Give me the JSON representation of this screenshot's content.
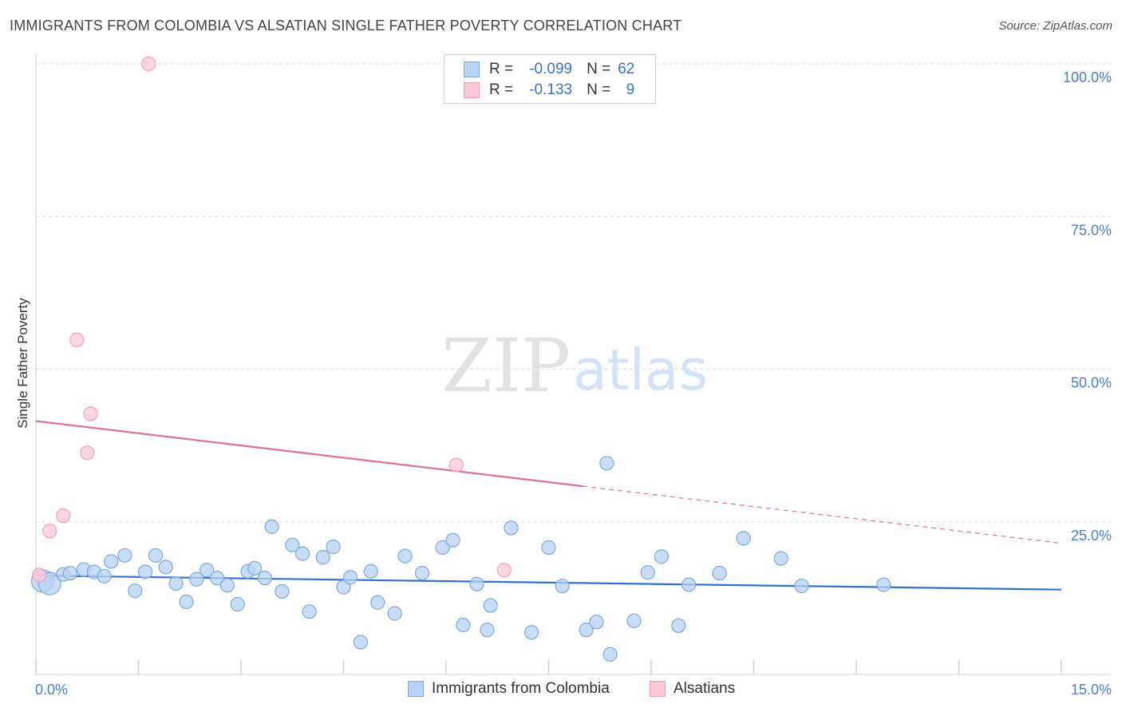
{
  "title": "IMMIGRANTS FROM COLOMBIA VS ALSATIAN SINGLE FATHER POVERTY CORRELATION CHART",
  "source": "Source: ZipAtlas.com",
  "watermark": {
    "zip": "ZIP",
    "atlas": "atlas"
  },
  "legend": {
    "r_label": "R =",
    "n_label": "N =",
    "rows": [
      {
        "r": "-0.099",
        "n": "62",
        "fill": "#b8d2f4",
        "stroke": "#7fa8e0"
      },
      {
        "r": "-0.133",
        "n": "9",
        "fill": "#fcc8d6",
        "stroke": "#f0a0b8"
      }
    ]
  },
  "bottom_legend": [
    {
      "label": "Immigrants from Colombia",
      "fill": "#b8d2f4",
      "stroke": "#7fa8e0"
    },
    {
      "label": "Alsatians",
      "fill": "#fcc8d6",
      "stroke": "#f0a0b8"
    }
  ],
  "chart_data": {
    "type": "scatter",
    "title": "IMMIGRANTS FROM COLOMBIA VS ALSATIAN SINGLE FATHER POVERTY CORRELATION CHART",
    "xlabel": "",
    "ylabel": "Single Father Poverty",
    "xlim": [
      0,
      15
    ],
    "ylim": [
      0,
      100
    ],
    "x_tick_labels": [
      "0.0%",
      "15.0%"
    ],
    "y_ticks": [
      25,
      50,
      75,
      100
    ],
    "y_tick_labels": [
      "25.0%",
      "50.0%",
      "75.0%",
      "100.0%"
    ],
    "grid": true,
    "series": [
      {
        "name": "Immigrants from Colombia",
        "color": "#7fa8e0",
        "fill": "#b8d2f4",
        "trend_color": "#2f72d0",
        "trend": {
          "x": [
            0,
            15
          ],
          "y": [
            16.2,
            13.9
          ]
        },
        "points": [
          [
            0.1,
            15.3
          ],
          [
            0.2,
            14.9
          ],
          [
            0.4,
            16.4
          ],
          [
            0.5,
            16.6
          ],
          [
            0.7,
            17.2
          ],
          [
            0.85,
            16.8
          ],
          [
            1.0,
            16.1
          ],
          [
            1.1,
            18.5
          ],
          [
            1.3,
            19.5
          ],
          [
            1.45,
            13.7
          ],
          [
            1.6,
            16.8
          ],
          [
            1.75,
            19.5
          ],
          [
            1.9,
            17.6
          ],
          [
            2.05,
            14.9
          ],
          [
            2.2,
            11.9
          ],
          [
            2.35,
            15.6
          ],
          [
            2.5,
            17.1
          ],
          [
            2.65,
            15.8
          ],
          [
            2.8,
            14.6
          ],
          [
            2.95,
            11.5
          ],
          [
            3.1,
            16.9
          ],
          [
            3.2,
            17.4
          ],
          [
            3.35,
            15.8
          ],
          [
            3.45,
            24.2
          ],
          [
            3.6,
            13.6
          ],
          [
            3.75,
            21.2
          ],
          [
            3.9,
            19.8
          ],
          [
            4.0,
            10.3
          ],
          [
            4.2,
            19.2
          ],
          [
            4.35,
            20.9
          ],
          [
            4.5,
            14.3
          ],
          [
            4.6,
            15.9
          ],
          [
            4.75,
            5.3
          ],
          [
            4.9,
            16.9
          ],
          [
            5.0,
            11.8
          ],
          [
            5.25,
            10.0
          ],
          [
            5.4,
            19.4
          ],
          [
            5.65,
            16.6
          ],
          [
            5.95,
            20.8
          ],
          [
            6.1,
            22.0
          ],
          [
            6.25,
            8.1
          ],
          [
            6.45,
            14.8
          ],
          [
            6.6,
            7.3
          ],
          [
            6.65,
            11.3
          ],
          [
            6.95,
            24.0
          ],
          [
            7.25,
            6.9
          ],
          [
            7.5,
            20.8
          ],
          [
            7.7,
            14.5
          ],
          [
            8.05,
            7.3
          ],
          [
            8.2,
            8.6
          ],
          [
            8.35,
            34.6
          ],
          [
            8.4,
            3.3
          ],
          [
            8.75,
            8.8
          ],
          [
            8.95,
            16.7
          ],
          [
            9.15,
            19.3
          ],
          [
            9.4,
            8.0
          ],
          [
            9.55,
            14.7
          ],
          [
            10.0,
            16.6
          ],
          [
            10.35,
            22.3
          ],
          [
            10.9,
            19.0
          ],
          [
            11.2,
            14.5
          ],
          [
            12.4,
            14.7
          ]
        ]
      },
      {
        "name": "Alsatians",
        "color": "#f0a0b8",
        "fill": "#fcc8d6",
        "trend_color": "#e07098",
        "trend": {
          "x": [
            0,
            15
          ],
          "y": [
            41.5,
            21.5
          ],
          "solid_until_x": 8.0
        },
        "points": [
          [
            0.05,
            16.3
          ],
          [
            0.2,
            23.5
          ],
          [
            0.4,
            26.0
          ],
          [
            0.6,
            54.8
          ],
          [
            0.75,
            36.3
          ],
          [
            0.8,
            42.7
          ],
          [
            1.65,
            100.0
          ],
          [
            6.15,
            34.3
          ],
          [
            6.85,
            17.1
          ]
        ]
      }
    ]
  }
}
